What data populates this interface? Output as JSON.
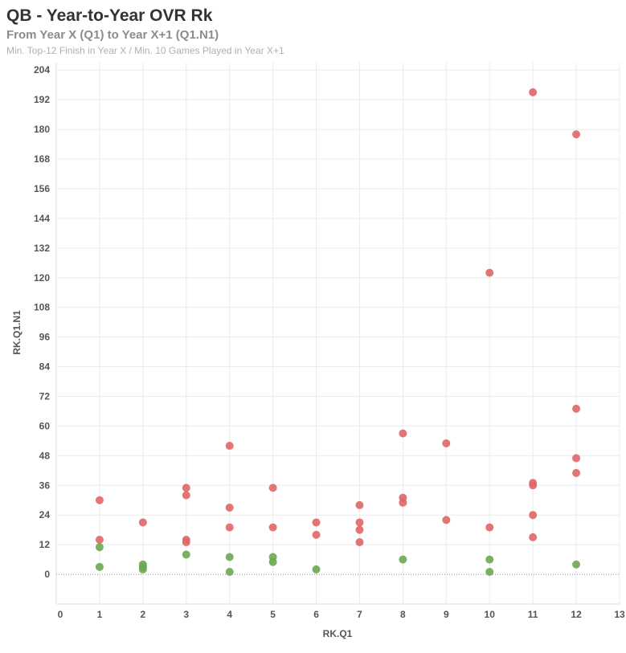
{
  "header": {
    "title": "QB - Year-to-Year OVR Rk",
    "subtitle": "From Year X (Q1) to Year X+1 (Q1.N1)",
    "note": "Min. Top-12 Finish in Year X / Min. 10 Games Played in Year X+1"
  },
  "colors": {
    "red": "#e06666",
    "green": "#6aa84f",
    "grid": "#ebebeb",
    "zero_line": "#888888"
  },
  "chart_data": {
    "type": "scatter",
    "title": "QB - Year-to-Year OVR Rk",
    "xlabel": "RK.Q1",
    "ylabel": "RK.Q1.N1",
    "xlim": [
      0,
      13
    ],
    "ylim": [
      -12,
      207
    ],
    "x_ticks": [
      0,
      1,
      2,
      3,
      4,
      5,
      6,
      7,
      8,
      9,
      10,
      11,
      12,
      13
    ],
    "y_ticks": [
      0,
      12,
      24,
      36,
      48,
      60,
      72,
      84,
      96,
      108,
      120,
      132,
      144,
      156,
      168,
      180,
      192,
      204
    ],
    "grid": true,
    "series": [
      {
        "color": "red",
        "points": [
          [
            1,
            30
          ],
          [
            1,
            14
          ],
          [
            2,
            21
          ],
          [
            3,
            35
          ],
          [
            3,
            32
          ],
          [
            3,
            14
          ],
          [
            3,
            13
          ],
          [
            4,
            52
          ],
          [
            4,
            27
          ],
          [
            4,
            19
          ],
          [
            5,
            35
          ],
          [
            5,
            19
          ],
          [
            6,
            21
          ],
          [
            6,
            16
          ],
          [
            7,
            28
          ],
          [
            7,
            21
          ],
          [
            7,
            18
          ],
          [
            7,
            13
          ],
          [
            8,
            57
          ],
          [
            8,
            31
          ],
          [
            8,
            29
          ],
          [
            9,
            53
          ],
          [
            9,
            22
          ],
          [
            10,
            122
          ],
          [
            10,
            19
          ],
          [
            11,
            195
          ],
          [
            11,
            37
          ],
          [
            11,
            36
          ],
          [
            11,
            24
          ],
          [
            11,
            15
          ],
          [
            12,
            178
          ],
          [
            12,
            67
          ],
          [
            12,
            47
          ],
          [
            12,
            41
          ]
        ]
      },
      {
        "color": "green",
        "points": [
          [
            1,
            11
          ],
          [
            1,
            3
          ],
          [
            2,
            4
          ],
          [
            2,
            3
          ],
          [
            2,
            2
          ],
          [
            3,
            8
          ],
          [
            4,
            7
          ],
          [
            4,
            1
          ],
          [
            5,
            7
          ],
          [
            5,
            5
          ],
          [
            6,
            2
          ],
          [
            8,
            6
          ],
          [
            10,
            6
          ],
          [
            10,
            1
          ],
          [
            12,
            4
          ]
        ]
      }
    ]
  }
}
